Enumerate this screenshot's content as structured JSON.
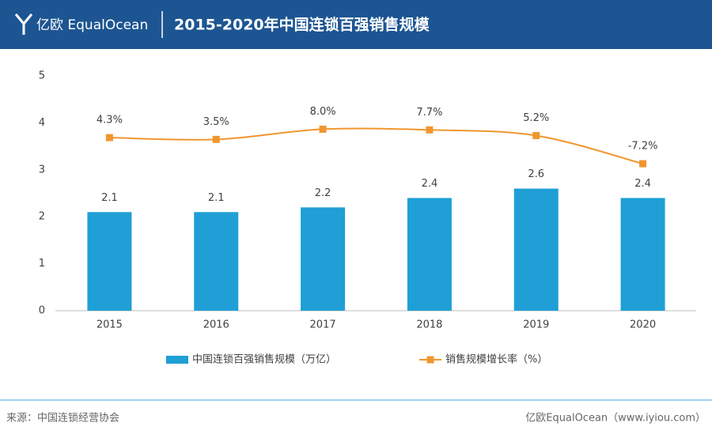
{
  "header": {
    "logo": "亿欧 EqualOcean",
    "title": "2015-2020年中国连锁百强销售规模"
  },
  "chart_data": {
    "type": "bar",
    "categories": [
      "2015",
      "2016",
      "2017",
      "2018",
      "2019",
      "2020"
    ],
    "series": [
      {
        "name": "中国连锁百强销售规模（万亿）",
        "type": "bar",
        "color": "#1f9fd6",
        "values": [
          2.1,
          2.1,
          2.2,
          2.4,
          2.6,
          2.4
        ]
      },
      {
        "name": "销售规模增长率（%）",
        "type": "line",
        "axis": "y2",
        "color": "#f0962e",
        "values": [
          4.3,
          3.5,
          8.0,
          7.7,
          5.2,
          -7.2
        ],
        "value_labels": [
          "4.3%",
          "3.5%",
          "8.0%",
          "7.7%",
          "5.2%",
          "-7.2%"
        ]
      }
    ],
    "ylim": [
      0,
      5
    ],
    "yticks": [
      0,
      1,
      2,
      3,
      4,
      5
    ],
    "y2lim": [
      -72,
      31.5
    ]
  },
  "footer": {
    "source": "来源：中国连锁经营协会",
    "credit": "亿欧EqualOcean（www.iyiou.com）"
  }
}
